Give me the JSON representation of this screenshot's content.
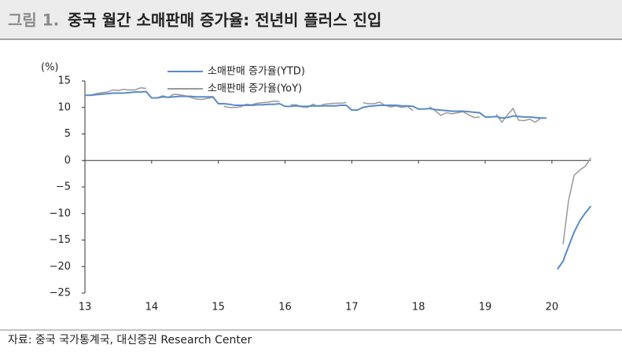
{
  "header": {
    "label": "그림 1.",
    "title": "중국 월간 소매판매 증가율: 전년비 플러스 진입"
  },
  "chart_data": {
    "type": "line",
    "y_label": "(%)",
    "categories": [
      "13",
      null,
      null,
      null,
      null,
      null,
      null,
      null,
      null,
      null,
      null,
      null,
      "14",
      null,
      null,
      null,
      null,
      null,
      null,
      null,
      null,
      null,
      null,
      null,
      "15",
      null,
      null,
      null,
      null,
      null,
      null,
      null,
      null,
      null,
      null,
      null,
      "16",
      null,
      null,
      null,
      null,
      null,
      null,
      null,
      null,
      null,
      null,
      null,
      "17",
      null,
      null,
      null,
      null,
      null,
      null,
      null,
      null,
      null,
      null,
      null,
      "18",
      null,
      null,
      null,
      null,
      null,
      null,
      null,
      null,
      null,
      null,
      null,
      "19",
      null,
      null,
      null,
      null,
      null,
      null,
      null,
      null,
      null,
      null,
      null,
      "20",
      null,
      null,
      null,
      null,
      null,
      null,
      null
    ],
    "series": [
      {
        "name": "소매판매 증가율(YTD)",
        "color": "#5b8ac6",
        "values": [
          12.3,
          12.3,
          12.4,
          12.5,
          12.6,
          12.7,
          12.7,
          12.7,
          12.8,
          12.9,
          12.9,
          13.0,
          11.8,
          11.8,
          12.0,
          11.9,
          12.0,
          12.1,
          12.1,
          12.1,
          12.0,
          12.0,
          12.0,
          12.0,
          10.7,
          10.7,
          10.6,
          10.4,
          10.4,
          10.4,
          10.4,
          10.5,
          10.5,
          10.6,
          10.6,
          10.7,
          10.2,
          10.2,
          10.3,
          10.2,
          10.2,
          10.3,
          10.3,
          10.3,
          10.3,
          10.3,
          10.4,
          10.4,
          9.5,
          9.5,
          10.0,
          10.2,
          10.3,
          10.4,
          10.4,
          10.4,
          10.4,
          10.3,
          10.3,
          10.2,
          9.7,
          9.7,
          9.8,
          9.6,
          9.5,
          9.4,
          9.3,
          9.3,
          9.3,
          9.2,
          9.1,
          9.0,
          8.2,
          8.2,
          8.3,
          8.0,
          8.1,
          8.4,
          8.3,
          8.2,
          8.2,
          8.1,
          8.0,
          8.0,
          null,
          -20.5,
          -19.0,
          -16.2,
          -13.5,
          -11.4,
          -9.9,
          -8.6
        ]
      },
      {
        "name": "소매판매 증가율(YoY)",
        "color": "#999999",
        "values": [
          12.3,
          12.3,
          12.6,
          12.8,
          12.9,
          13.3,
          13.2,
          13.4,
          13.3,
          13.3,
          13.7,
          13.6,
          null,
          11.8,
          12.2,
          11.9,
          12.5,
          12.4,
          12.2,
          11.9,
          11.6,
          11.5,
          11.7,
          11.9,
          null,
          10.2,
          10.0,
          10.0,
          10.1,
          10.6,
          10.5,
          10.8,
          10.9,
          11.0,
          11.2,
          11.1,
          null,
          10.5,
          10.5,
          10.1,
          10.0,
          10.6,
          10.2,
          10.6,
          10.7,
          10.8,
          10.8,
          10.9,
          null,
          null,
          10.9,
          10.7,
          10.7,
          11.0,
          10.4,
          10.1,
          10.3,
          10.0,
          10.2,
          9.4,
          null,
          null,
          10.1,
          9.4,
          8.5,
          9.0,
          8.8,
          9.0,
          9.2,
          8.6,
          8.1,
          8.2,
          null,
          null,
          8.7,
          7.2,
          8.6,
          9.8,
          7.6,
          7.5,
          7.8,
          7.2,
          8.0,
          8.0,
          null,
          null,
          -15.8,
          -7.5,
          -2.8,
          -1.8,
          -1.1,
          0.5
        ]
      }
    ],
    "ylim": [
      -25,
      15
    ],
    "yticks": [
      {
        "value": -25,
        "label": "−25"
      },
      {
        "value": -20,
        "label": "−20"
      },
      {
        "value": -15,
        "label": "−15"
      },
      {
        "value": -10,
        "label": "−10"
      },
      {
        "value": -5,
        "label": "−5"
      },
      0,
      5,
      10,
      15
    ],
    "legend": "top-center"
  },
  "footer": {
    "source": "자료: 중국 국가통계국, 대신증권 Research Center"
  }
}
